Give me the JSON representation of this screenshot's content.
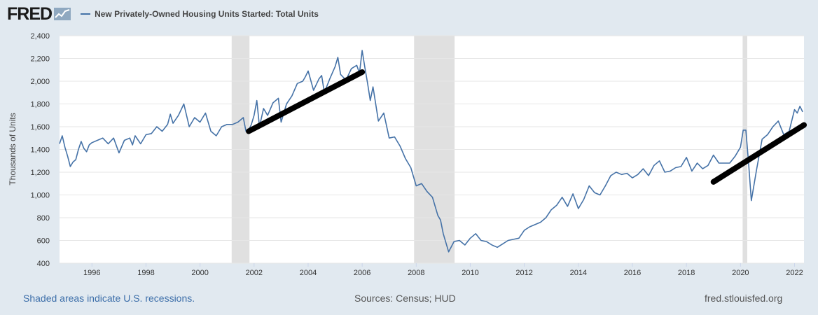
{
  "header": {
    "logo_text": "FRED",
    "series_title": "New Privately-Owned Housing Units Started: Total Units"
  },
  "footer": {
    "recession_note": "Shaded areas indicate U.S. recessions.",
    "sources": "Sources: Census; HUD",
    "site": "fred.stlouisfed.org"
  },
  "colors": {
    "series": "#4572a7",
    "recession": "#e0e0e0",
    "trend": "#000000",
    "background": "#e1e9f0",
    "plot": "#ffffff"
  },
  "chart_data": {
    "type": "line",
    "title": "New Privately-Owned Housing Units Started: Total Units",
    "ylabel": "Thousands of Units",
    "xlim": [
      1994.8,
      2022.35
    ],
    "ylim": [
      400,
      2400
    ],
    "yticks": [
      400,
      600,
      800,
      1000,
      1200,
      1400,
      1600,
      1800,
      2000,
      2200,
      2400
    ],
    "xticks": [
      1996,
      1998,
      2000,
      2002,
      2004,
      2006,
      2008,
      2010,
      2012,
      2014,
      2016,
      2018,
      2020,
      2022
    ],
    "grid": true,
    "recessions": [
      [
        2001.17,
        2001.83
      ],
      [
        2007.92,
        2009.42
      ],
      [
        2020.08,
        2020.25
      ]
    ],
    "series": [
      {
        "name": "New Privately-Owned Housing Units Started: Total Units",
        "x": [
          1994.8,
          1994.9,
          1995.0,
          1995.1,
          1995.2,
          1995.3,
          1995.4,
          1995.5,
          1995.6,
          1995.7,
          1995.8,
          1995.9,
          1996.0,
          1996.2,
          1996.4,
          1996.6,
          1996.8,
          1997.0,
          1997.2,
          1997.4,
          1997.5,
          1997.6,
          1997.8,
          1998.0,
          1998.2,
          1998.4,
          1998.6,
          1998.8,
          1998.9,
          1999.0,
          1999.2,
          1999.4,
          1999.6,
          1999.8,
          2000.0,
          2000.2,
          2000.4,
          2000.6,
          2000.8,
          2001.0,
          2001.2,
          2001.4,
          2001.6,
          2001.7,
          2001.8,
          2001.9,
          2002.0,
          2002.1,
          2002.2,
          2002.35,
          2002.5,
          2002.7,
          2002.9,
          2003.0,
          2003.2,
          2003.4,
          2003.6,
          2003.8,
          2003.9,
          2004.0,
          2004.2,
          2004.4,
          2004.5,
          2004.6,
          2004.8,
          2005.0,
          2005.1,
          2005.2,
          2005.4,
          2005.6,
          2005.8,
          2005.9,
          2006.0,
          2006.1,
          2006.2,
          2006.3,
          2006.4,
          2006.6,
          2006.8,
          2007.0,
          2007.2,
          2007.4,
          2007.6,
          2007.8,
          2008.0,
          2008.2,
          2008.4,
          2008.6,
          2008.8,
          2008.9,
          2009.0,
          2009.2,
          2009.4,
          2009.6,
          2009.8,
          2010.0,
          2010.2,
          2010.4,
          2010.6,
          2010.8,
          2011.0,
          2011.2,
          2011.4,
          2011.6,
          2011.8,
          2012.0,
          2012.2,
          2012.4,
          2012.6,
          2012.8,
          2013.0,
          2013.2,
          2013.4,
          2013.6,
          2013.8,
          2014.0,
          2014.2,
          2014.4,
          2014.6,
          2014.8,
          2015.0,
          2015.2,
          2015.4,
          2015.6,
          2015.8,
          2016.0,
          2016.2,
          2016.4,
          2016.6,
          2016.8,
          2017.0,
          2017.2,
          2017.4,
          2017.6,
          2017.8,
          2018.0,
          2018.2,
          2018.4,
          2018.6,
          2018.8,
          2019.0,
          2019.2,
          2019.4,
          2019.6,
          2019.8,
          2020.0,
          2020.1,
          2020.2,
          2020.3,
          2020.4,
          2020.6,
          2020.8,
          2021.0,
          2021.2,
          2021.4,
          2021.6,
          2021.8,
          2022.0,
          2022.1,
          2022.2,
          2022.3
        ],
        "y": [
          1450,
          1520,
          1420,
          1340,
          1250,
          1290,
          1310,
          1400,
          1470,
          1410,
          1380,
          1440,
          1460,
          1480,
          1500,
          1450,
          1500,
          1370,
          1480,
          1500,
          1440,
          1520,
          1450,
          1530,
          1540,
          1600,
          1560,
          1620,
          1710,
          1630,
          1700,
          1800,
          1600,
          1680,
          1640,
          1720,
          1560,
          1520,
          1600,
          1620,
          1620,
          1640,
          1680,
          1560,
          1570,
          1620,
          1700,
          1830,
          1600,
          1760,
          1700,
          1810,
          1850,
          1640,
          1800,
          1870,
          1980,
          2000,
          2040,
          2090,
          1920,
          2020,
          2050,
          1900,
          2020,
          2130,
          2210,
          2060,
          2010,
          2110,
          2140,
          2070,
          2270,
          2120,
          1980,
          1830,
          1950,
          1650,
          1720,
          1500,
          1510,
          1430,
          1320,
          1240,
          1080,
          1100,
          1030,
          980,
          820,
          780,
          660,
          500,
          590,
          600,
          560,
          620,
          660,
          600,
          590,
          560,
          540,
          570,
          600,
          610,
          620,
          690,
          720,
          740,
          760,
          800,
          870,
          910,
          980,
          900,
          1010,
          880,
          960,
          1080,
          1020,
          1000,
          1080,
          1170,
          1200,
          1180,
          1190,
          1150,
          1180,
          1230,
          1170,
          1260,
          1300,
          1200,
          1210,
          1240,
          1250,
          1330,
          1210,
          1280,
          1230,
          1260,
          1350,
          1280,
          1280,
          1280,
          1340,
          1420,
          1570,
          1570,
          1280,
          950,
          1230,
          1490,
          1530,
          1600,
          1650,
          1530,
          1560,
          1750,
          1720,
          1780,
          1730
        ]
      }
    ],
    "trend_overlays": [
      {
        "x": [
          2001.8,
          2006.0
        ],
        "y": [
          1560,
          2080
        ]
      },
      {
        "x": [
          2019.0,
          2022.35
        ],
        "y": [
          1115,
          1615
        ]
      }
    ]
  }
}
